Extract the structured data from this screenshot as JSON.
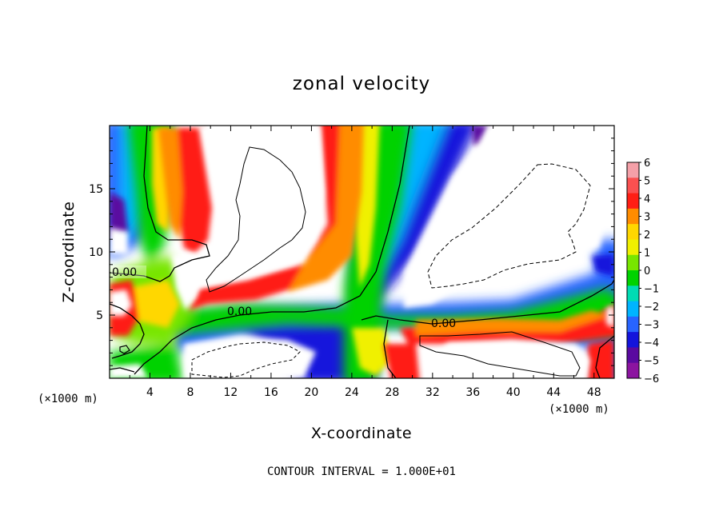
{
  "chart_data": {
    "type": "heatmap",
    "title": "zonal velocity",
    "xlabel": "X-coordinate",
    "ylabel": "Z-coordinate",
    "x_unit": "(×1000 m)",
    "y_unit": "(×1000 m)",
    "xlim": [
      0,
      50
    ],
    "ylim": [
      0,
      20
    ],
    "x_ticks": [
      "4",
      "8",
      "12",
      "16",
      "20",
      "24",
      "28",
      "32",
      "36",
      "40",
      "44",
      "48"
    ],
    "y_ticks": [
      "5",
      "10",
      "15"
    ],
    "colorbar": {
      "levels": [
        "6",
        "5",
        "4",
        "3",
        "2",
        "1",
        "0",
        "-1",
        "-2",
        "-3",
        "-4",
        "-5",
        "-6"
      ],
      "range": [
        -6,
        6
      ],
      "colors": [
        "#f4a0a8",
        "#fa5050",
        "#ff1e14",
        "#ff8c00",
        "#ffd700",
        "#f0f000",
        "#78e600",
        "#00d200",
        "#00dcb4",
        "#00b4ff",
        "#2864ff",
        "#1414dc",
        "#5a0aa0",
        "#8c14a0"
      ],
      "out_of_range_color": "#ffffff"
    },
    "contour_labels": [
      "0.00",
      "0.00",
      "0.00"
    ],
    "footnote": "CONTOUR INTERVAL = 1.000E+01"
  }
}
